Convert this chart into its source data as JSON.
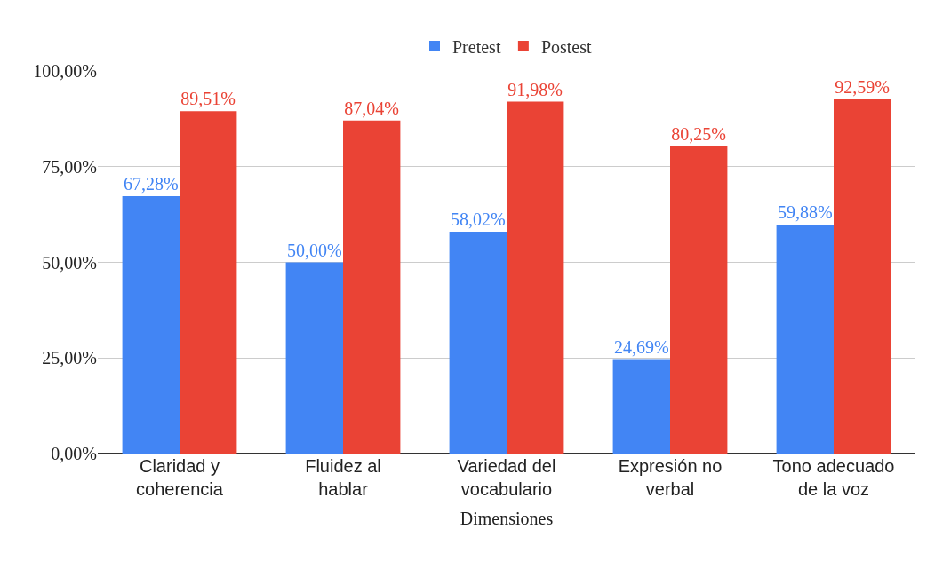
{
  "chart_data": {
    "type": "bar",
    "xlabel": "Dimensiones",
    "categories": [
      "Claridad y coherencia",
      "Fluidez al hablar",
      "Variedad del vocabulario",
      "Expresión no verbal",
      "Tono adecuado de la voz"
    ],
    "series": [
      {
        "name": "Pretest",
        "color": "#4285f4",
        "values": [
          67.28,
          50.0,
          58.02,
          24.69,
          59.88
        ],
        "value_labels": [
          "67,28%",
          "50,00%",
          "58,02%",
          "24,69%",
          "59,88%"
        ]
      },
      {
        "name": "Postest",
        "color": "#ea4335",
        "values": [
          89.51,
          87.04,
          91.98,
          80.25,
          92.59
        ],
        "value_labels": [
          "89,51%",
          "87,04%",
          "91,98%",
          "80,25%",
          "92,59%"
        ]
      }
    ],
    "ylim": [
      0,
      100
    ],
    "yticks": [
      {
        "value": 0,
        "label": "0,00%"
      },
      {
        "value": 25,
        "label": "25,00%"
      },
      {
        "value": 50,
        "label": "50,00%"
      },
      {
        "value": 75,
        "label": "75,00%"
      },
      {
        "value": 100,
        "label": "100,00%"
      }
    ],
    "grid": "y",
    "legend": "top"
  }
}
